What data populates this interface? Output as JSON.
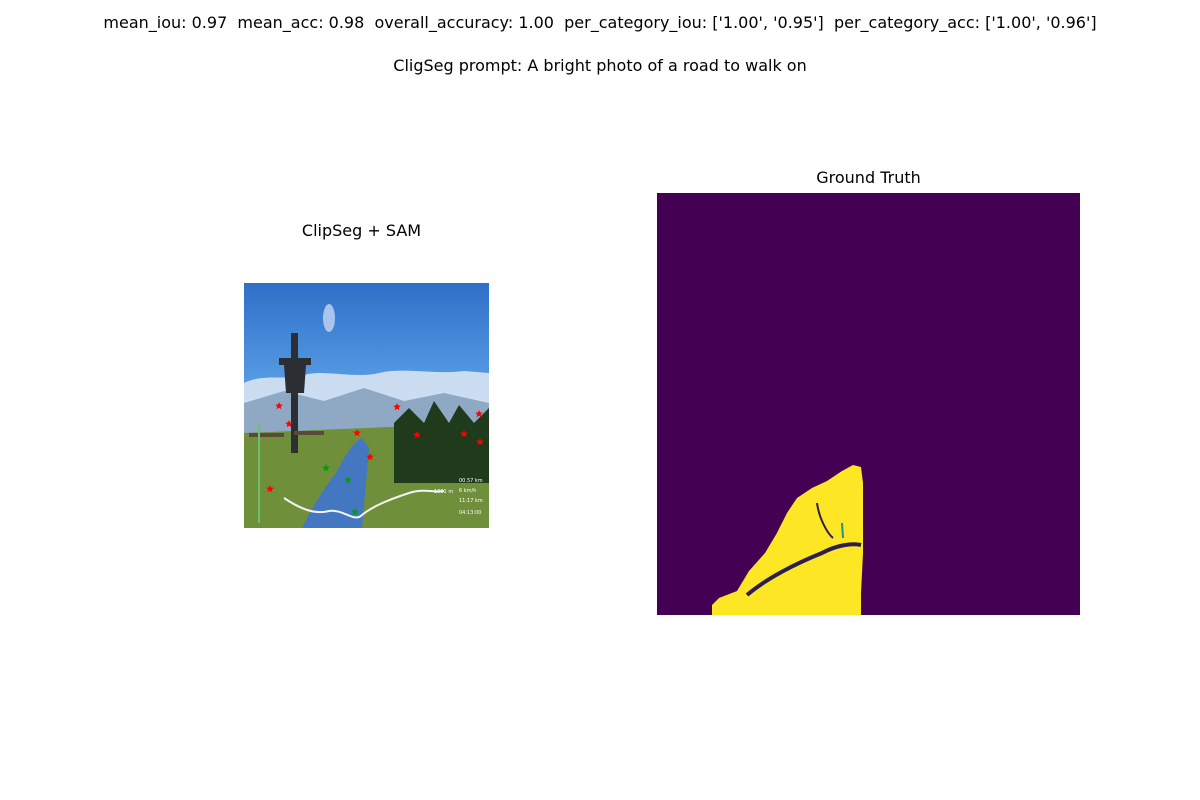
{
  "header": {
    "metrics_line": "mean_iou: 0.97  mean_acc: 0.98  overall_accuracy: 1.00  per_category_iou: ['1.00', '0.95']  per_category_acc: ['1.00', '0.96']",
    "prompt_line": "CligSeg prompt: A bright photo of a road to walk on"
  },
  "panels": {
    "left_title": "ClipSeg + SAM",
    "right_title": "Ground Truth"
  },
  "photo_overlay": {
    "labels": [
      "00.57 km",
      "6 km/h",
      "11:17 km",
      "04:13:00",
      "1001 m"
    ]
  },
  "colors": {
    "mask_background": "#440154",
    "mask_foreground": "#fde725",
    "mask_edge": "#2c1f4f",
    "mask_accent": "#21918c",
    "segment_highlight": "#3f74d0",
    "negative_point": "#ff0000",
    "positive_point": "#00a000"
  }
}
